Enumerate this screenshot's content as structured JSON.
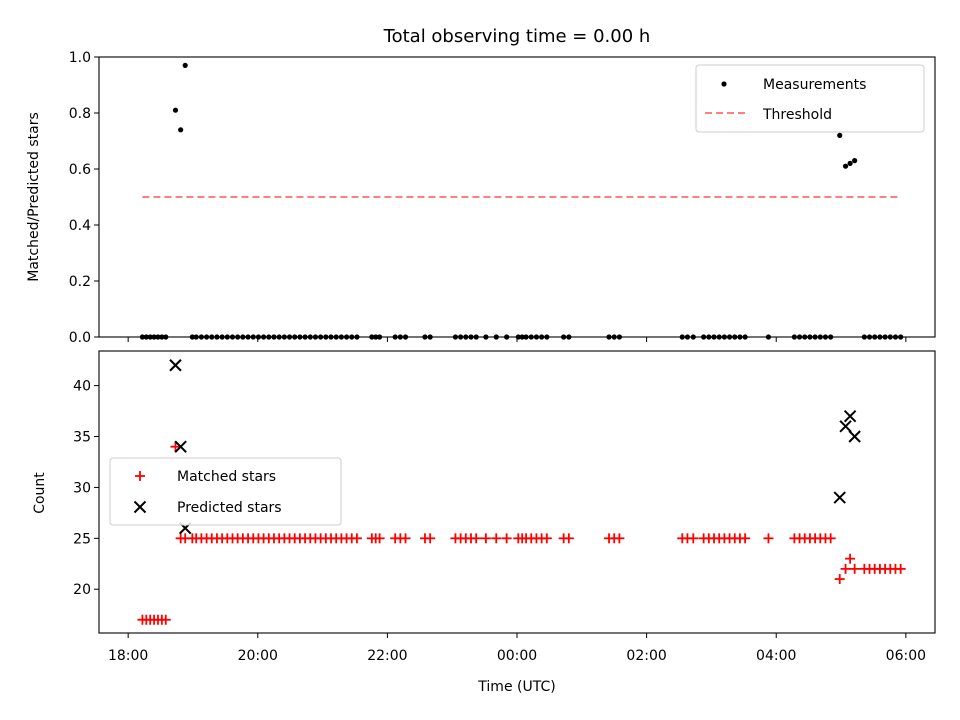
{
  "chart_data": [
    {
      "type": "scatter",
      "title": "Total observing time = 0.00 h",
      "xlabel": "",
      "ylabel": "Matched/Predicted stars",
      "x_unit": "hours since 18:00 UTC",
      "xlim": [
        -0.45,
        12.45
      ],
      "ylim": [
        0,
        1.0
      ],
      "yticks": [
        "0.0",
        "0.2",
        "0.4",
        "0.6",
        "0.8",
        "1.0"
      ],
      "legend_position": "upper right",
      "series": [
        {
          "name": "Measurements",
          "style": "dot",
          "color": "#000000",
          "points": [
            [
              0.22,
              0
            ],
            [
              0.28,
              0
            ],
            [
              0.34,
              0
            ],
            [
              0.4,
              0
            ],
            [
              0.46,
              0
            ],
            [
              0.52,
              0
            ],
            [
              0.58,
              0
            ],
            [
              0.73,
              0.81
            ],
            [
              0.81,
              0.74
            ],
            [
              0.88,
              0.97
            ],
            [
              0.99,
              0
            ],
            [
              1.05,
              0
            ],
            [
              1.13,
              0
            ],
            [
              1.21,
              0
            ],
            [
              1.29,
              0
            ],
            [
              1.37,
              0
            ],
            [
              1.45,
              0
            ],
            [
              1.53,
              0
            ],
            [
              1.61,
              0
            ],
            [
              1.69,
              0
            ],
            [
              1.77,
              0
            ],
            [
              1.85,
              0
            ],
            [
              1.93,
              0
            ],
            [
              2.01,
              0
            ],
            [
              2.09,
              0
            ],
            [
              2.17,
              0
            ],
            [
              2.25,
              0
            ],
            [
              2.33,
              0
            ],
            [
              2.41,
              0
            ],
            [
              2.49,
              0
            ],
            [
              2.57,
              0
            ],
            [
              2.65,
              0
            ],
            [
              2.73,
              0
            ],
            [
              2.81,
              0
            ],
            [
              2.89,
              0
            ],
            [
              2.97,
              0
            ],
            [
              3.05,
              0
            ],
            [
              3.13,
              0
            ],
            [
              3.21,
              0
            ],
            [
              3.29,
              0
            ],
            [
              3.37,
              0
            ],
            [
              3.45,
              0
            ],
            [
              3.53,
              0
            ],
            [
              3.76,
              0
            ],
            [
              3.82,
              0
            ],
            [
              3.88,
              0
            ],
            [
              4.12,
              0
            ],
            [
              4.2,
              0
            ],
            [
              4.28,
              0
            ],
            [
              4.58,
              0
            ],
            [
              4.66,
              0
            ],
            [
              5.05,
              0
            ],
            [
              5.13,
              0
            ],
            [
              5.21,
              0
            ],
            [
              5.29,
              0
            ],
            [
              5.37,
              0
            ],
            [
              5.52,
              0
            ],
            [
              5.68,
              0
            ],
            [
              5.84,
              0
            ],
            [
              6.02,
              0
            ],
            [
              6.08,
              0
            ],
            [
              6.14,
              0
            ],
            [
              6.22,
              0
            ],
            [
              6.3,
              0
            ],
            [
              6.38,
              0
            ],
            [
              6.46,
              0
            ],
            [
              6.72,
              0
            ],
            [
              6.8,
              0
            ],
            [
              7.42,
              0
            ],
            [
              7.5,
              0
            ],
            [
              7.58,
              0
            ],
            [
              8.55,
              0
            ],
            [
              8.63,
              0
            ],
            [
              8.72,
              0
            ],
            [
              8.88,
              0
            ],
            [
              8.96,
              0
            ],
            [
              9.04,
              0
            ],
            [
              9.12,
              0
            ],
            [
              9.2,
              0
            ],
            [
              9.28,
              0
            ],
            [
              9.36,
              0
            ],
            [
              9.44,
              0
            ],
            [
              9.52,
              0
            ],
            [
              9.88,
              0
            ],
            [
              10.28,
              0
            ],
            [
              10.36,
              0
            ],
            [
              10.44,
              0
            ],
            [
              10.52,
              0
            ],
            [
              10.6,
              0
            ],
            [
              10.68,
              0
            ],
            [
              10.76,
              0
            ],
            [
              10.84,
              0
            ],
            [
              10.98,
              0.72
            ],
            [
              11.07,
              0.61
            ],
            [
              11.14,
              0.62
            ],
            [
              11.21,
              0.63
            ],
            [
              11.36,
              0
            ],
            [
              11.44,
              0
            ],
            [
              11.52,
              0
            ],
            [
              11.6,
              0
            ],
            [
              11.68,
              0
            ],
            [
              11.76,
              0
            ],
            [
              11.84,
              0
            ],
            [
              11.92,
              0
            ]
          ]
        },
        {
          "name": "Threshold",
          "style": "dashed",
          "color": "#ff7f7f",
          "x": [
            0.22,
            11.92
          ],
          "y": [
            0.5,
            0.5
          ]
        }
      ]
    },
    {
      "type": "scatter",
      "title": "",
      "xlabel": "Time (UTC)",
      "ylabel": "Count",
      "x_unit": "hours since 18:00 UTC",
      "xlim": [
        -0.45,
        12.45
      ],
      "ylim": [
        15.7,
        43.4
      ],
      "xticks": [
        {
          "value": 0,
          "label": "18:00"
        },
        {
          "value": 2,
          "label": "20:00"
        },
        {
          "value": 4,
          "label": "22:00"
        },
        {
          "value": 6,
          "label": "00:00"
        },
        {
          "value": 8,
          "label": "02:00"
        },
        {
          "value": 10,
          "label": "04:00"
        },
        {
          "value": 12,
          "label": "06:00"
        }
      ],
      "yticks": [
        20,
        25,
        30,
        35,
        40
      ],
      "legend_position": "center left",
      "series": [
        {
          "name": "Matched stars",
          "style": "plus",
          "color": "#ff0000",
          "points": [
            [
              0.22,
              17
            ],
            [
              0.28,
              17
            ],
            [
              0.34,
              17
            ],
            [
              0.4,
              17
            ],
            [
              0.46,
              17
            ],
            [
              0.52,
              17
            ],
            [
              0.58,
              17
            ],
            [
              0.73,
              34
            ],
            [
              0.81,
              25
            ],
            [
              0.88,
              25
            ],
            [
              0.99,
              25
            ],
            [
              1.05,
              25
            ],
            [
              1.13,
              25
            ],
            [
              1.21,
              25
            ],
            [
              1.29,
              25
            ],
            [
              1.37,
              25
            ],
            [
              1.45,
              25
            ],
            [
              1.53,
              25
            ],
            [
              1.61,
              25
            ],
            [
              1.69,
              25
            ],
            [
              1.77,
              25
            ],
            [
              1.85,
              25
            ],
            [
              1.93,
              25
            ],
            [
              2.01,
              25
            ],
            [
              2.09,
              25
            ],
            [
              2.17,
              25
            ],
            [
              2.25,
              25
            ],
            [
              2.33,
              25
            ],
            [
              2.41,
              25
            ],
            [
              2.49,
              25
            ],
            [
              2.57,
              25
            ],
            [
              2.65,
              25
            ],
            [
              2.73,
              25
            ],
            [
              2.81,
              25
            ],
            [
              2.89,
              25
            ],
            [
              2.97,
              25
            ],
            [
              3.05,
              25
            ],
            [
              3.13,
              25
            ],
            [
              3.21,
              25
            ],
            [
              3.29,
              25
            ],
            [
              3.37,
              25
            ],
            [
              3.45,
              25
            ],
            [
              3.53,
              25
            ],
            [
              3.76,
              25
            ],
            [
              3.82,
              25
            ],
            [
              3.88,
              25
            ],
            [
              4.12,
              25
            ],
            [
              4.2,
              25
            ],
            [
              4.28,
              25
            ],
            [
              4.58,
              25
            ],
            [
              4.66,
              25
            ],
            [
              5.05,
              25
            ],
            [
              5.13,
              25
            ],
            [
              5.21,
              25
            ],
            [
              5.29,
              25
            ],
            [
              5.37,
              25
            ],
            [
              5.52,
              25
            ],
            [
              5.68,
              25
            ],
            [
              5.84,
              25
            ],
            [
              6.02,
              25
            ],
            [
              6.08,
              25
            ],
            [
              6.14,
              25
            ],
            [
              6.22,
              25
            ],
            [
              6.3,
              25
            ],
            [
              6.38,
              25
            ],
            [
              6.46,
              25
            ],
            [
              6.72,
              25
            ],
            [
              6.8,
              25
            ],
            [
              7.42,
              25
            ],
            [
              7.5,
              25
            ],
            [
              7.58,
              25
            ],
            [
              8.55,
              25
            ],
            [
              8.63,
              25
            ],
            [
              8.72,
              25
            ],
            [
              8.88,
              25
            ],
            [
              8.96,
              25
            ],
            [
              9.04,
              25
            ],
            [
              9.12,
              25
            ],
            [
              9.2,
              25
            ],
            [
              9.28,
              25
            ],
            [
              9.36,
              25
            ],
            [
              9.44,
              25
            ],
            [
              9.52,
              25
            ],
            [
              9.88,
              25
            ],
            [
              10.28,
              25
            ],
            [
              10.36,
              25
            ],
            [
              10.44,
              25
            ],
            [
              10.52,
              25
            ],
            [
              10.6,
              25
            ],
            [
              10.68,
              25
            ],
            [
              10.76,
              25
            ],
            [
              10.84,
              25
            ],
            [
              10.98,
              21
            ],
            [
              11.07,
              22
            ],
            [
              11.14,
              23
            ],
            [
              11.21,
              22
            ],
            [
              11.36,
              22
            ],
            [
              11.44,
              22
            ],
            [
              11.52,
              22
            ],
            [
              11.6,
              22
            ],
            [
              11.68,
              22
            ],
            [
              11.76,
              22
            ],
            [
              11.84,
              22
            ],
            [
              11.92,
              22
            ]
          ]
        },
        {
          "name": "Predicted stars",
          "style": "x",
          "color": "#000000",
          "points": [
            [
              0.73,
              42
            ],
            [
              0.81,
              34
            ],
            [
              0.88,
              26
            ],
            [
              10.98,
              29
            ],
            [
              11.07,
              36
            ],
            [
              11.14,
              37
            ],
            [
              11.21,
              35
            ]
          ]
        }
      ]
    }
  ]
}
